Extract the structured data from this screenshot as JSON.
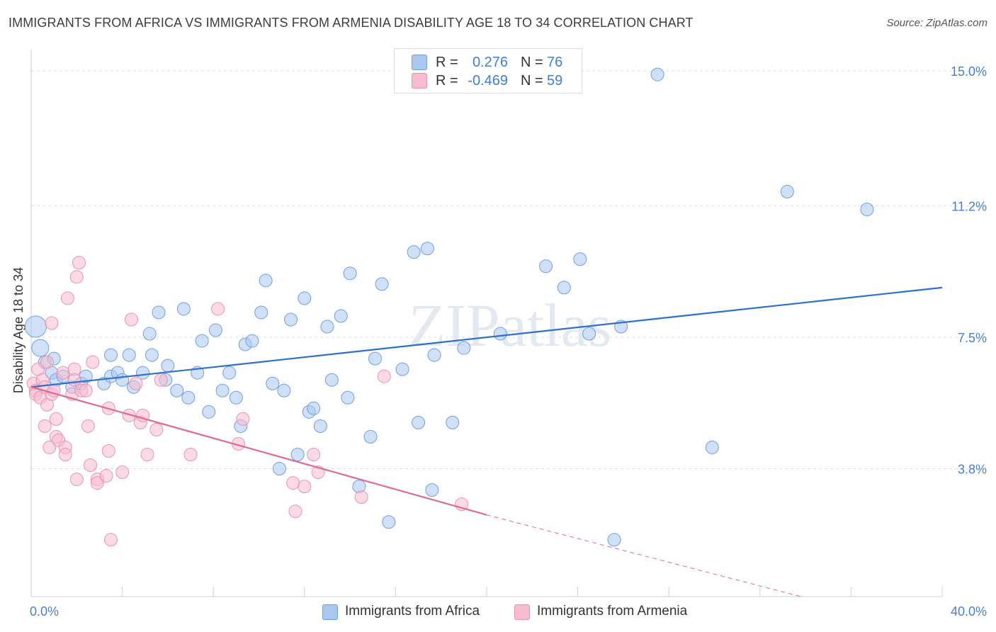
{
  "title": "IMMIGRANTS FROM AFRICA VS IMMIGRANTS FROM ARMENIA DISABILITY AGE 18 TO 34 CORRELATION CHART",
  "source": "Source: ZipAtlas.com",
  "watermark": "ZIPatlas",
  "legend_top": {
    "rows": [
      {
        "r_label": "R =",
        "r_value": "0.276",
        "n_label": "N =",
        "n_value": "76",
        "color": "#a9c8f0",
        "border": "#6f9fe0"
      },
      {
        "r_label": "R =",
        "r_value": "-0.469",
        "n_label": "N =",
        "n_value": "59",
        "color": "#f7bcd0",
        "border": "#e993b1"
      }
    ]
  },
  "legend_bottom": {
    "items": [
      {
        "label": "Immigrants from Africa",
        "color": "#a9c8f0",
        "border": "#6f9fe0"
      },
      {
        "label": "Immigrants from Armenia",
        "color": "#f7bcd0",
        "border": "#e993b1"
      }
    ]
  },
  "chart_data": {
    "type": "scatter",
    "title": "IMMIGRANTS FROM AFRICA VS IMMIGRANTS FROM ARMENIA DISABILITY AGE 18 TO 34 CORRELATION CHART",
    "xlabel": "",
    "ylabel": "Disability Age 18 to 34",
    "xlim": [
      0,
      40
    ],
    "ylim": [
      0.2,
      15.6
    ],
    "x_tick_labels": [
      "0.0%",
      "40.0%"
    ],
    "y_ticks": [
      3.8,
      7.5,
      11.2,
      15.0
    ],
    "y_tick_labels": [
      "3.8%",
      "7.5%",
      "11.2%",
      "15.0%"
    ],
    "grid": true,
    "series": [
      {
        "name": "Immigrants from Africa",
        "color": "#a9c8f0",
        "edge": "#6f9fe0",
        "trend_color": "#2f6fce",
        "trend": {
          "x0": 0,
          "y0": 6.1,
          "x1": 40,
          "y1": 8.9
        },
        "points": [
          [
            0.2,
            7.8
          ],
          [
            0.4,
            7.2
          ],
          [
            0.6,
            6.8
          ],
          [
            0.9,
            6.5
          ],
          [
            1.0,
            6.9
          ],
          [
            1.1,
            6.3
          ],
          [
            1.4,
            6.4
          ],
          [
            1.8,
            6.1
          ],
          [
            2.2,
            6.2
          ],
          [
            2.4,
            6.4
          ],
          [
            3.2,
            6.2
          ],
          [
            3.5,
            6.4
          ],
          [
            3.5,
            7.0
          ],
          [
            3.8,
            6.5
          ],
          [
            4.0,
            6.3
          ],
          [
            4.3,
            7.0
          ],
          [
            4.5,
            6.1
          ],
          [
            4.9,
            6.5
          ],
          [
            5.2,
            7.6
          ],
          [
            5.3,
            7.0
          ],
          [
            5.6,
            8.2
          ],
          [
            5.9,
            6.3
          ],
          [
            6.0,
            6.7
          ],
          [
            6.4,
            6.0
          ],
          [
            6.7,
            8.3
          ],
          [
            6.9,
            5.8
          ],
          [
            7.3,
            6.5
          ],
          [
            7.5,
            7.4
          ],
          [
            7.8,
            5.4
          ],
          [
            8.1,
            7.7
          ],
          [
            8.4,
            6.0
          ],
          [
            8.7,
            6.5
          ],
          [
            9.0,
            5.8
          ],
          [
            9.2,
            5.0
          ],
          [
            9.4,
            7.3
          ],
          [
            9.7,
            7.4
          ],
          [
            10.1,
            8.2
          ],
          [
            10.3,
            9.1
          ],
          [
            10.6,
            6.2
          ],
          [
            10.9,
            3.8
          ],
          [
            11.1,
            6.0
          ],
          [
            11.4,
            8.0
          ],
          [
            11.7,
            4.2
          ],
          [
            12.0,
            8.6
          ],
          [
            12.2,
            5.4
          ],
          [
            12.4,
            5.5
          ],
          [
            12.7,
            5.0
          ],
          [
            13.0,
            7.8
          ],
          [
            13.2,
            6.3
          ],
          [
            13.6,
            8.1
          ],
          [
            13.9,
            5.8
          ],
          [
            14.0,
            9.3
          ],
          [
            14.4,
            3.3
          ],
          [
            14.9,
            4.7
          ],
          [
            15.1,
            6.9
          ],
          [
            15.4,
            9.0
          ],
          [
            15.7,
            2.3
          ],
          [
            16.3,
            6.6
          ],
          [
            16.8,
            9.9
          ],
          [
            17.0,
            5.1
          ],
          [
            17.4,
            10.0
          ],
          [
            17.6,
            3.2
          ],
          [
            17.7,
            7.0
          ],
          [
            18.5,
            5.1
          ],
          [
            19.0,
            7.2
          ],
          [
            20.6,
            7.6
          ],
          [
            22.6,
            9.5
          ],
          [
            23.4,
            8.9
          ],
          [
            24.1,
            9.7
          ],
          [
            24.5,
            7.6
          ],
          [
            25.6,
            1.8
          ],
          [
            25.9,
            7.8
          ],
          [
            27.5,
            14.9
          ],
          [
            29.9,
            4.4
          ],
          [
            33.2,
            11.6
          ],
          [
            36.7,
            11.1
          ]
        ],
        "sizes": [
          15,
          12,
          9,
          9,
          9,
          9,
          9,
          9,
          9,
          9,
          9,
          9,
          9,
          9,
          9,
          9,
          9,
          9,
          9,
          9,
          9,
          9,
          9,
          9,
          9,
          9,
          9,
          9,
          9,
          9,
          9,
          9,
          9,
          9,
          9,
          9,
          9,
          9,
          9,
          9,
          9,
          9,
          9,
          9,
          9,
          9,
          9,
          9,
          9,
          9,
          9,
          9,
          9,
          9,
          9,
          9,
          9,
          9,
          9,
          9,
          9,
          9,
          9,
          9,
          9,
          9,
          9,
          9,
          9,
          9,
          9,
          9,
          9,
          9,
          9,
          9
        ]
      },
      {
        "name": "Immigrants from Armenia",
        "color": "#f7bcd0",
        "edge": "#e993b1",
        "trend_color": "#e06a95",
        "trend": {
          "x0": 0,
          "y0": 6.1,
          "x1": 20,
          "y1": 2.5
        },
        "trend_dashed": {
          "x0": 20,
          "y0": 2.5,
          "x1": 33.8,
          "y1": 0.2
        },
        "points": [
          [
            0.1,
            6.2
          ],
          [
            0.2,
            6.0
          ],
          [
            0.2,
            5.9
          ],
          [
            0.3,
            6.6
          ],
          [
            0.4,
            5.8
          ],
          [
            0.5,
            6.3
          ],
          [
            0.6,
            6.1
          ],
          [
            0.6,
            5.0
          ],
          [
            0.7,
            6.8
          ],
          [
            0.7,
            5.6
          ],
          [
            0.8,
            4.4
          ],
          [
            0.9,
            5.9
          ],
          [
            0.9,
            7.9
          ],
          [
            1.0,
            6.0
          ],
          [
            1.1,
            5.2
          ],
          [
            1.1,
            4.7
          ],
          [
            1.2,
            4.6
          ],
          [
            1.4,
            6.5
          ],
          [
            1.5,
            4.4
          ],
          [
            1.5,
            4.2
          ],
          [
            1.6,
            8.6
          ],
          [
            1.8,
            5.9
          ],
          [
            1.9,
            6.6
          ],
          [
            1.9,
            6.3
          ],
          [
            2.0,
            3.5
          ],
          [
            2.0,
            9.2
          ],
          [
            2.1,
            9.6
          ],
          [
            2.2,
            6.0
          ],
          [
            2.4,
            6.0
          ],
          [
            2.5,
            5.0
          ],
          [
            2.6,
            3.9
          ],
          [
            2.7,
            6.8
          ],
          [
            2.9,
            3.5
          ],
          [
            2.9,
            3.4
          ],
          [
            3.3,
            3.6
          ],
          [
            3.4,
            5.5
          ],
          [
            3.4,
            4.3
          ],
          [
            3.5,
            1.8
          ],
          [
            4.0,
            3.7
          ],
          [
            4.3,
            5.3
          ],
          [
            4.4,
            8.0
          ],
          [
            4.6,
            6.2
          ],
          [
            4.8,
            5.1
          ],
          [
            4.9,
            5.3
          ],
          [
            5.1,
            4.2
          ],
          [
            5.5,
            4.9
          ],
          [
            5.7,
            6.3
          ],
          [
            7.0,
            4.2
          ],
          [
            8.2,
            8.3
          ],
          [
            9.1,
            4.5
          ],
          [
            9.3,
            5.2
          ],
          [
            11.5,
            3.4
          ],
          [
            11.6,
            2.6
          ],
          [
            12.0,
            3.3
          ],
          [
            12.4,
            4.2
          ],
          [
            12.6,
            3.7
          ],
          [
            14.5,
            3.0
          ],
          [
            15.5,
            6.4
          ],
          [
            18.9,
            2.8
          ]
        ],
        "sizes": [
          9,
          9,
          9,
          9,
          9,
          9,
          9,
          9,
          9,
          9,
          9,
          9,
          9,
          9,
          9,
          9,
          9,
          9,
          9,
          9,
          9,
          9,
          9,
          9,
          9,
          9,
          9,
          9,
          9,
          9,
          9,
          9,
          9,
          9,
          9,
          9,
          9,
          9,
          9,
          9,
          9,
          9,
          9,
          9,
          9,
          9,
          9,
          9,
          9,
          9,
          9,
          9,
          9,
          9,
          9,
          9,
          9,
          9,
          9
        ]
      }
    ]
  }
}
